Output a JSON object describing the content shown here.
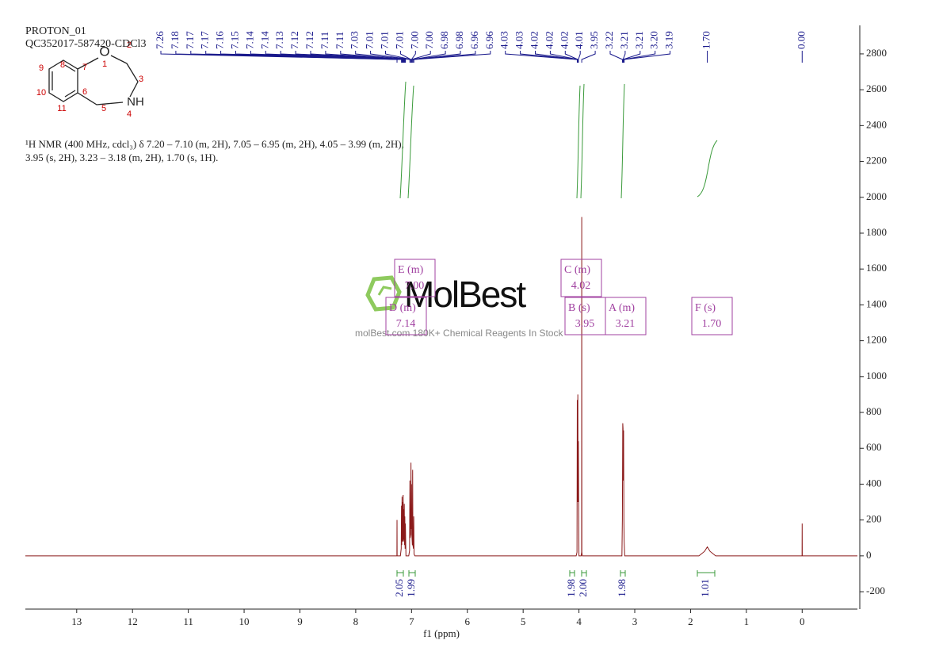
{
  "chart_data": {
    "type": "line",
    "title": "PROTON_01",
    "subtitle": "QC352017-587420-CDCl3",
    "description": [
      "¹H NMR (400 MHz, cdcl₃) δ 7.20 – 7.10 (m, 2H), 7.05 – 6.95 (m, 2H), 4.05 – 3.99 (m, 2H),",
      "3.95 (s, 2H), 3.23 – 3.18 (m, 2H), 1.70 (s, 1H)."
    ],
    "xlabel": "f1 (ppm)",
    "xlim": [
      13.92,
      -0.99
    ],
    "ylim": [
      -297,
      2959
    ],
    "xticks": [
      13,
      12,
      11,
      10,
      9,
      8,
      7,
      6,
      5,
      4,
      3,
      2,
      1,
      0
    ],
    "yticks": [
      -200,
      0,
      200,
      400,
      600,
      800,
      1000,
      1200,
      1400,
      1600,
      1800,
      2000,
      2200,
      2400,
      2600,
      2800
    ],
    "series": [
      {
        "color": "#8b1a1a",
        "x": [
          13.92,
          7.3,
          7.262,
          7.26,
          7.258,
          7.2,
          7.185,
          7.18,
          7.175,
          7.17,
          7.165,
          7.16,
          7.155,
          7.15,
          7.145,
          7.14,
          7.135,
          7.13,
          7.125,
          7.12,
          7.115,
          7.11,
          7.1,
          7.05,
          7.035,
          7.03,
          7.025,
          7.015,
          7.01,
          7.005,
          7.0,
          6.995,
          6.985,
          6.98,
          6.975,
          6.965,
          6.96,
          6.955,
          6.94,
          4.05,
          4.035,
          4.03,
          4.025,
          4.02,
          4.015,
          4.01,
          4.0,
          3.96,
          3.952,
          3.95,
          3.948,
          3.94,
          3.23,
          3.222,
          3.215,
          3.21,
          3.205,
          3.2,
          3.195,
          3.19,
          3.18,
          1.85,
          1.75,
          1.7,
          1.65,
          1.55,
          0.01,
          0.002,
          0.0,
          -0.002,
          -0.99
        ],
        "values": [
          0,
          0,
          0,
          200,
          0,
          0,
          40,
          280,
          60,
          330,
          80,
          300,
          80,
          340,
          90,
          260,
          80,
          290,
          60,
          220,
          40,
          180,
          0,
          0,
          30,
          420,
          100,
          120,
          520,
          150,
          400,
          120,
          60,
          480,
          60,
          40,
          220,
          10,
          0,
          0,
          20,
          870,
          300,
          900,
          300,
          640,
          0,
          0,
          20,
          1890,
          20,
          0,
          0,
          200,
          740,
          710,
          420,
          700,
          200,
          80,
          0,
          0,
          25,
          50,
          25,
          0,
          0,
          0,
          180,
          0,
          0
        ]
      }
    ],
    "peak_labels": [
      "7.26",
      "7.18",
      "7.17",
      "7.17",
      "7.16",
      "7.15",
      "7.14",
      "7.14",
      "7.13",
      "7.12",
      "7.12",
      "7.11",
      "7.11",
      "7.03",
      "7.01",
      "7.01",
      "7.01",
      "7.00",
      "7.00",
      "6.98",
      "6.98",
      "6.96",
      "6.96",
      "4.03",
      "4.03",
      "4.02",
      "4.02",
      "4.02",
      "4.01",
      "3.95",
      "3.22",
      "3.21",
      "3.21",
      "3.20",
      "3.19",
      "1.70",
      "0.00"
    ],
    "multiplets": [
      {
        "label": "E (m)",
        "shift": "7.00"
      },
      {
        "label": "D (m)",
        "shift": "7.14"
      },
      {
        "label": "C (m)",
        "shift": "4.02"
      },
      {
        "label": "B (s)",
        "shift": "3.95"
      },
      {
        "label": "A (m)",
        "shift": "3.21"
      },
      {
        "label": "F (s)",
        "shift": "1.70"
      }
    ],
    "integrals": [
      "2.05",
      "1.99",
      "1.98",
      "2.00",
      "1.98",
      "1.01"
    ],
    "watermark": {
      "logo": "MolBest",
      "tagline": "molBest.com 180K+ Chemical Reagents In Stock"
    }
  },
  "structure": {
    "atoms": [
      "O",
      "1",
      "2",
      "3",
      "NH",
      "4",
      "5",
      "6",
      "7",
      "8",
      "9",
      "10",
      "11"
    ]
  }
}
